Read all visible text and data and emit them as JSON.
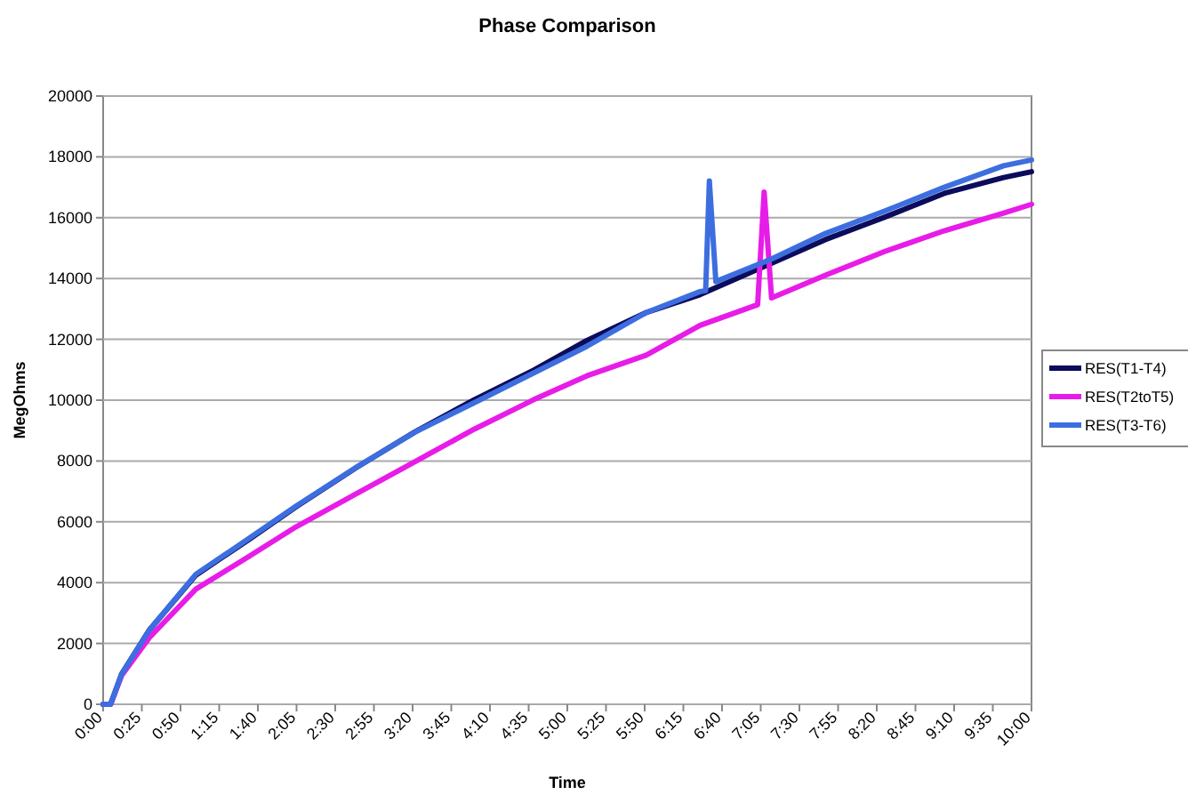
{
  "chart_data": {
    "type": "line",
    "title": "Phase Comparison",
    "xlabel": "Time",
    "ylabel": "MegOhms",
    "xlim": [
      0,
      10
    ],
    "xticks": [
      {
        "value": 0,
        "label": "0:00"
      },
      {
        "value": 0.4167,
        "label": "0:25"
      },
      {
        "value": 0.8333,
        "label": "0:50"
      },
      {
        "value": 1.25,
        "label": "1:15"
      },
      {
        "value": 1.6667,
        "label": "1:40"
      },
      {
        "value": 2.0833,
        "label": "2:05"
      },
      {
        "value": 2.5,
        "label": "2:30"
      },
      {
        "value": 2.9167,
        "label": "2:55"
      },
      {
        "value": 3.3333,
        "label": "3:20"
      },
      {
        "value": 3.75,
        "label": "3:45"
      },
      {
        "value": 4.1667,
        "label": "4:10"
      },
      {
        "value": 4.5833,
        "label": "4:35"
      },
      {
        "value": 5,
        "label": "5:00"
      },
      {
        "value": 5.4167,
        "label": "5:25"
      },
      {
        "value": 5.8333,
        "label": "5:50"
      },
      {
        "value": 6.25,
        "label": "6:15"
      },
      {
        "value": 6.6667,
        "label": "6:40"
      },
      {
        "value": 7.0833,
        "label": "7:05"
      },
      {
        "value": 7.5,
        "label": "7:30"
      },
      {
        "value": 7.9167,
        "label": "7:55"
      },
      {
        "value": 8.3333,
        "label": "8:20"
      },
      {
        "value": 8.75,
        "label": "8:45"
      },
      {
        "value": 9.1667,
        "label": "9:10"
      },
      {
        "value": 9.5833,
        "label": "9:35"
      },
      {
        "value": 10,
        "label": "10:00"
      }
    ],
    "ylim": [
      0,
      20000
    ],
    "yticks": [
      0,
      2000,
      4000,
      6000,
      8000,
      10000,
      12000,
      14000,
      16000,
      18000,
      20000
    ],
    "grid": "y",
    "legend": "right",
    "marker": "none",
    "line_style": "solid",
    "series": [
      {
        "name": "RES(T1-T4)",
        "color": "#0c0c5c",
        "x": [
          0,
          0.08,
          0.2,
          0.5,
          1.0,
          1.57,
          2.08,
          2.72,
          3.36,
          4.0,
          4.64,
          5.21,
          5.85,
          6.43,
          7.2,
          7.78,
          8.42,
          9.06,
          9.7,
          10
        ],
        "values": [
          0,
          0,
          1000,
          2450,
          4250,
          5420,
          6500,
          7770,
          8960,
          10020,
          10990,
          11960,
          12880,
          13470,
          14500,
          15280,
          16020,
          16800,
          17320,
          17510
        ]
      },
      {
        "name": "RES(T2toT5)",
        "color": "#e81ce8",
        "x": [
          0,
          0.08,
          0.2,
          0.5,
          1.0,
          1.57,
          2.08,
          2.72,
          3.36,
          4.0,
          4.64,
          5.21,
          5.85,
          6.43,
          7.05,
          7.12,
          7.2,
          7.78,
          8.42,
          9.06,
          9.7,
          10
        ],
        "values": [
          0,
          0,
          950,
          2200,
          3790,
          4860,
          5840,
          6910,
          7980,
          9050,
          10020,
          10800,
          11480,
          12460,
          13140,
          16840,
          13360,
          14110,
          14890,
          15570,
          16150,
          16440
        ]
      },
      {
        "name": "RES(T3-T6)",
        "color": "#3d6ee0",
        "x": [
          0,
          0.08,
          0.2,
          0.5,
          1.0,
          1.57,
          2.08,
          2.72,
          3.36,
          4.0,
          4.64,
          5.21,
          5.85,
          6.43,
          6.49,
          6.53,
          6.6,
          7.2,
          7.78,
          8.42,
          9.06,
          9.7,
          10
        ],
        "values": [
          0,
          0,
          1000,
          2450,
          4280,
          5450,
          6520,
          7780,
          8950,
          9920,
          10900,
          11770,
          12880,
          13570,
          13600,
          17210,
          13900,
          14640,
          15480,
          16220,
          17000,
          17710,
          17900
        ]
      }
    ]
  }
}
